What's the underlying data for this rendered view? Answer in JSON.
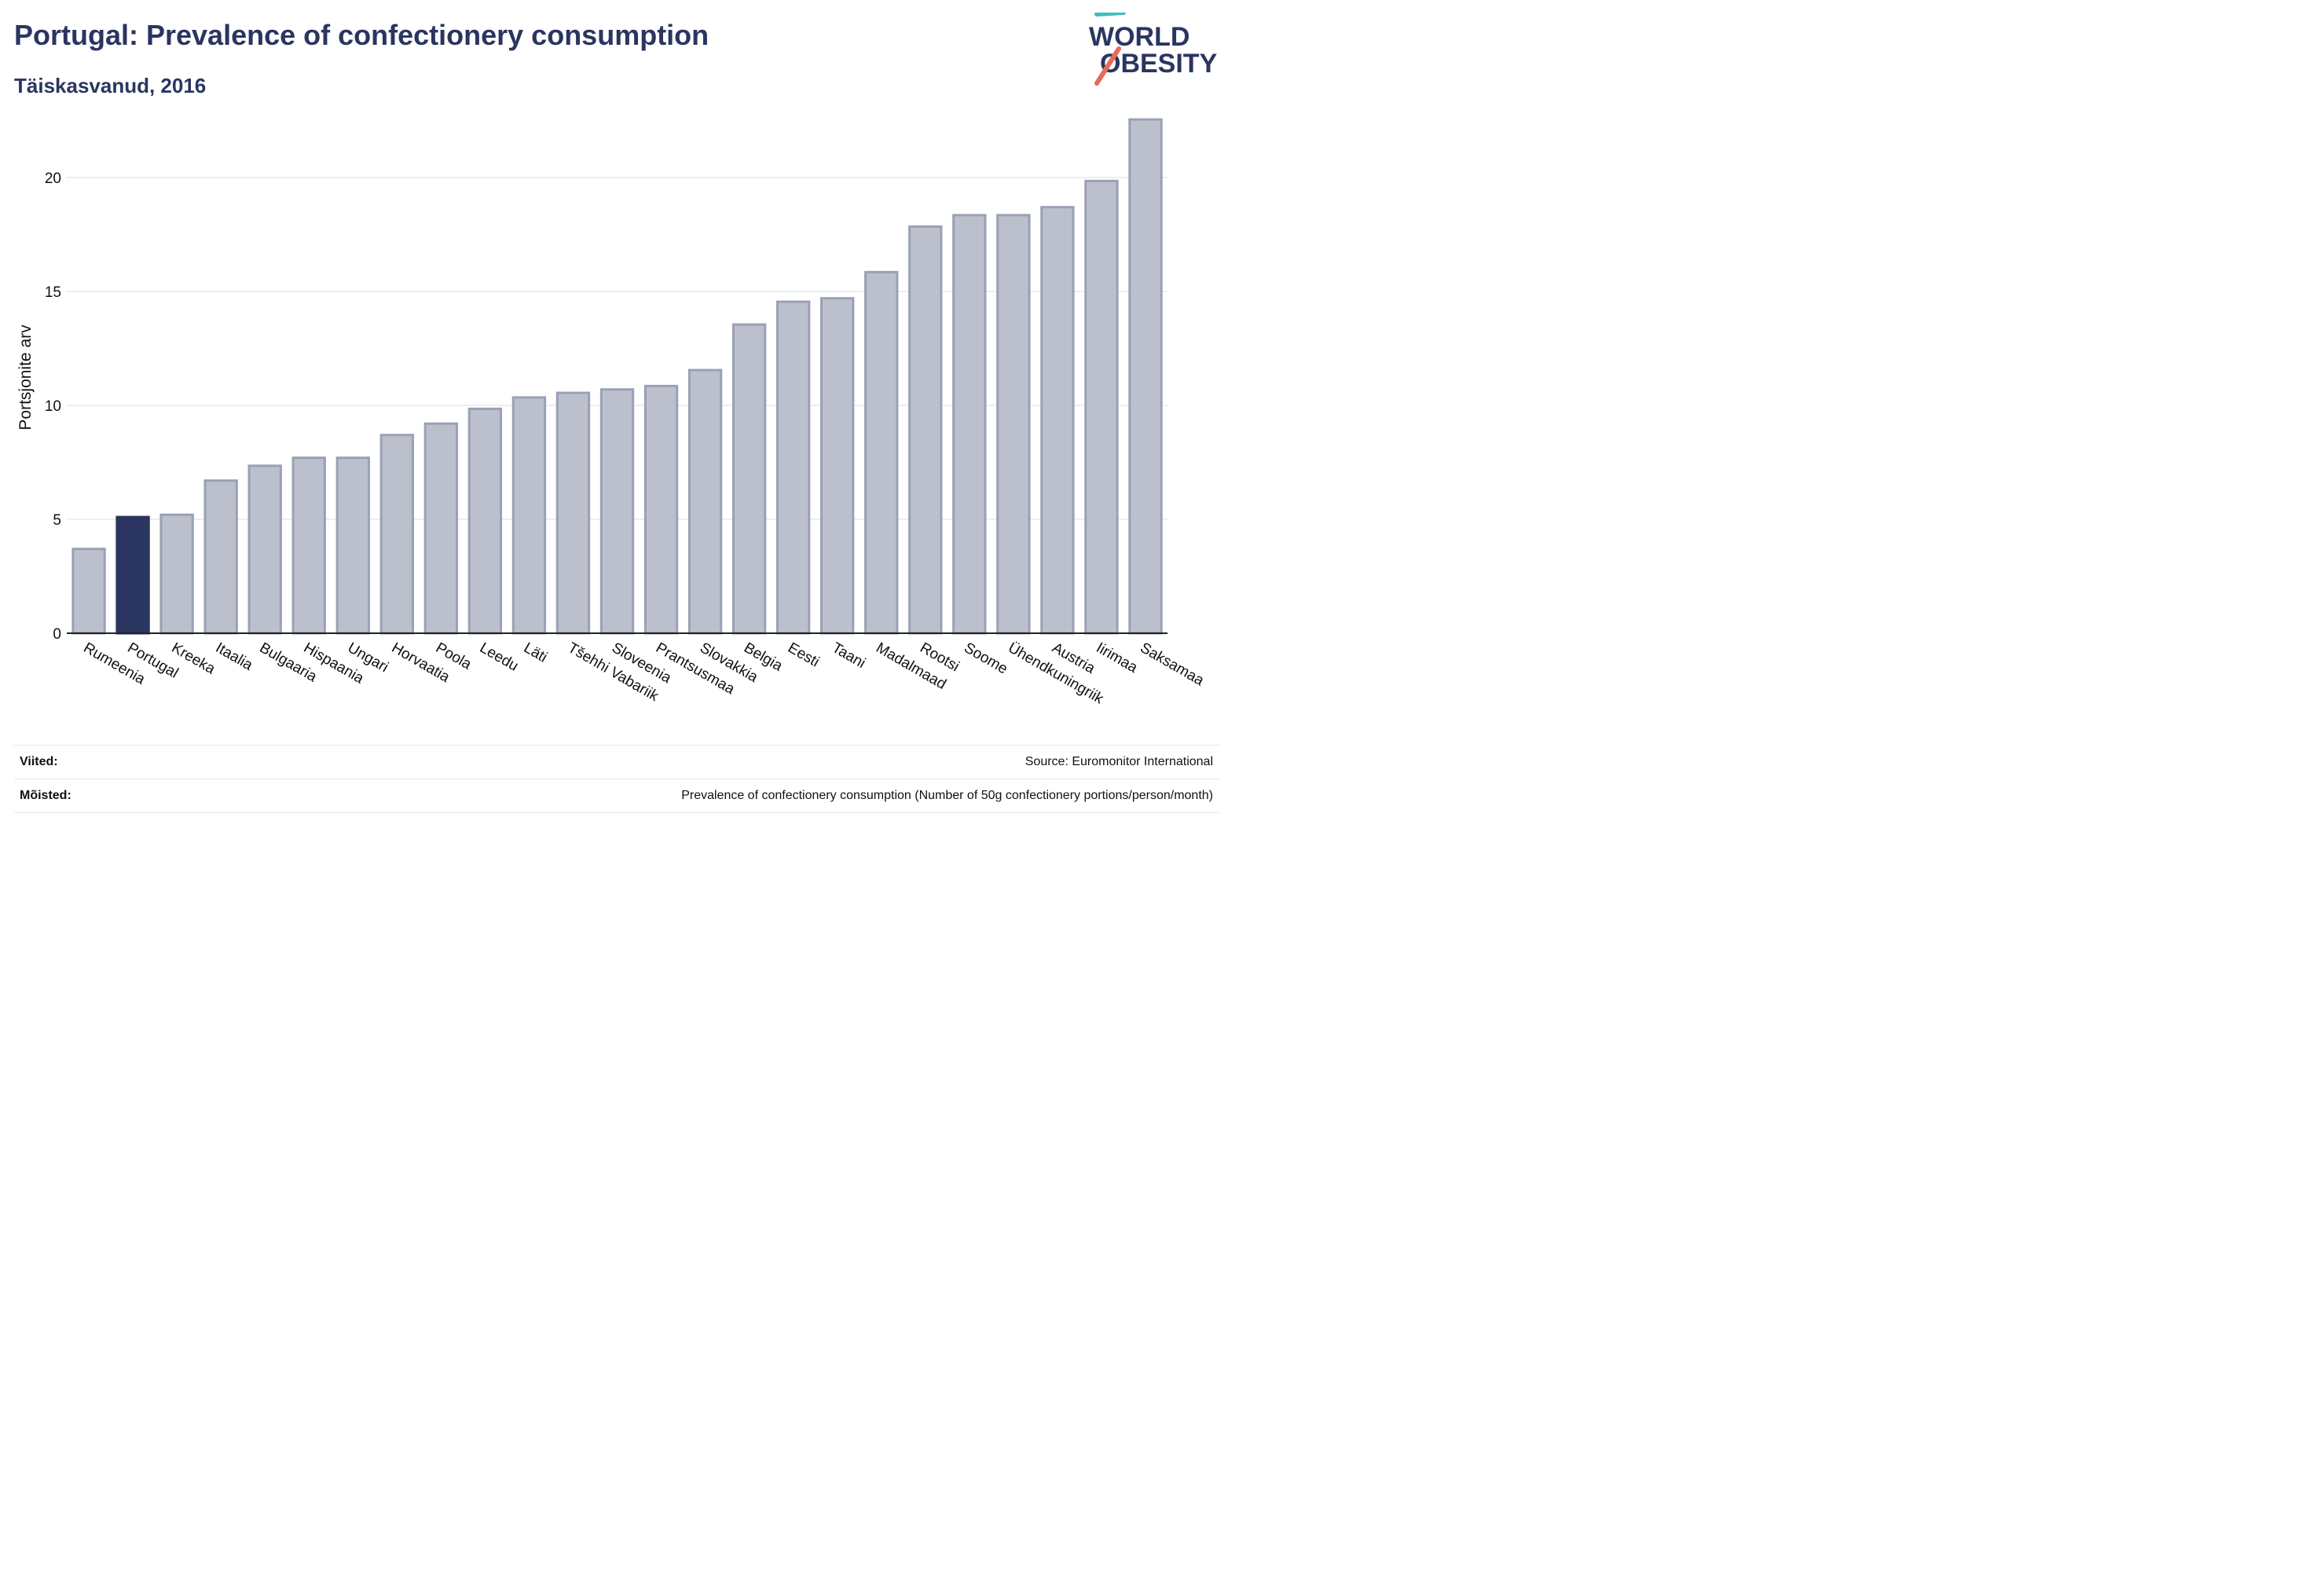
{
  "header": {
    "title": "Portugal: Prevalence of confectionery consumption",
    "subtitle": "Täiskasvanud, 2016"
  },
  "logo": {
    "line1": "WORLD",
    "line2": "OBESITY"
  },
  "colors": {
    "highlight": "#2a3560",
    "bar_fill": "#bcc0cd",
    "bar_stroke": "#9aa0b5",
    "title": "#2a3560",
    "logo_teal": "#3bbfbf",
    "logo_coral": "#e76a5a",
    "grid": "#e6e8ee"
  },
  "chart_data": {
    "type": "bar",
    "ylabel": "Portsjonite arv",
    "ylim": [
      0,
      23
    ],
    "yticks": [
      0,
      5,
      10,
      15,
      20
    ],
    "grid": true,
    "highlight": "Portugal",
    "categories": [
      "Rumeenia",
      "Portugal",
      "Kreeka",
      "Itaalia",
      "Bulgaaria",
      "Hispaania",
      "Ungari",
      "Horvaatia",
      "Poola",
      "Leedu",
      "Läti",
      "Tšehhi Vabariik",
      "Sloveenia",
      "Prantsusmaa",
      "Slovakkia",
      "Belgia",
      "Eesti",
      "Taani",
      "Madalmaad",
      "Rootsi",
      "Soome",
      "Ühendkuningriik",
      "Austria",
      "Iirimaa",
      "Saksamaa"
    ],
    "values": [
      3.7,
      5.1,
      5.2,
      6.7,
      7.35,
      7.7,
      7.7,
      8.7,
      9.2,
      9.85,
      10.35,
      10.55,
      10.7,
      10.85,
      11.55,
      13.55,
      14.55,
      14.7,
      15.85,
      17.85,
      18.35,
      18.35,
      18.7,
      19.85,
      22.55
    ]
  },
  "footer": {
    "references_label": "Viited:",
    "references_value": "Source: Euromonitor International",
    "definitions_label": "Mõisted:",
    "definitions_value": "Prevalence of confectionery consumption (Number of 50g confectionery portions/person/month)"
  }
}
